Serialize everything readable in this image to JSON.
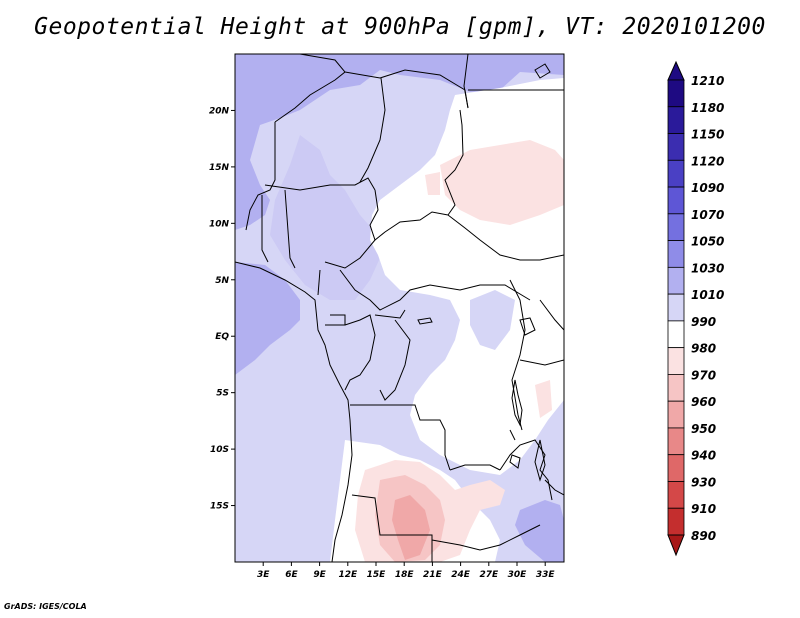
{
  "title": "Geopotential Height at 900hPa [gpm], VT: 2020101200",
  "credit": "GrADS: IGES/COLA",
  "map": {
    "lat_labels": [
      {
        "label": "20N",
        "lat": 20
      },
      {
        "label": "15N",
        "lat": 15
      },
      {
        "label": "10N",
        "lat": 10
      },
      {
        "label": "5N",
        "lat": 5
      },
      {
        "label": "EQ",
        "lat": 0
      },
      {
        "label": "5S",
        "lat": -5
      },
      {
        "label": "10S",
        "lat": -10
      },
      {
        "label": "15S",
        "lat": -15
      }
    ],
    "lon_labels": [
      {
        "label": "3E",
        "lon": 3
      },
      {
        "label": "6E",
        "lon": 6
      },
      {
        "label": "9E",
        "lon": 9
      },
      {
        "label": "12E",
        "lon": 12
      },
      {
        "label": "15E",
        "lon": 15
      },
      {
        "label": "18E",
        "lon": 18
      },
      {
        "label": "21E",
        "lon": 21
      },
      {
        "label": "24E",
        "lon": 24
      },
      {
        "label": "27E",
        "lon": 27
      },
      {
        "label": "30E",
        "lon": 30
      },
      {
        "label": "33E",
        "lon": 33
      }
    ],
    "lon_range": [
      0,
      35
    ],
    "lat_range": [
      -20,
      25
    ]
  },
  "colorbar": {
    "levels": [
      {
        "label": "1210",
        "color": "#1e0a82"
      },
      {
        "label": "1180",
        "color": "#2a1a9a"
      },
      {
        "label": "1150",
        "color": "#3b2db0"
      },
      {
        "label": "1120",
        "color": "#4a40c4"
      },
      {
        "label": "1090",
        "color": "#5e56d6"
      },
      {
        "label": "1070",
        "color": "#7470e0"
      },
      {
        "label": "1050",
        "color": "#8f8ce8"
      },
      {
        "label": "1030",
        "color": "#b2b0f0"
      },
      {
        "label": "1010",
        "color": "#d6d6f6"
      },
      {
        "label": "990",
        "color": "#ffffff"
      },
      {
        "label": "980",
        "color": "#fbe2e2"
      },
      {
        "label": "970",
        "color": "#f6c5c5"
      },
      {
        "label": "960",
        "color": "#f0a8a8"
      },
      {
        "label": "950",
        "color": "#e88888"
      },
      {
        "label": "940",
        "color": "#df6868"
      },
      {
        "label": "930",
        "color": "#d44848"
      },
      {
        "label": "910",
        "color": "#c42e2e"
      },
      {
        "label": "890",
        "color": "#a81818"
      }
    ],
    "top_cap_color": "#1e0a82",
    "bottom_cap_color": "#a81818"
  },
  "colors": {
    "c1010": "#d6d6f6",
    "c1030": "#b2b0f0",
    "c990": "#ffffff",
    "c980": "#fbe2e2",
    "c970": "#f6c5c5",
    "c960": "#f0a8a8"
  }
}
